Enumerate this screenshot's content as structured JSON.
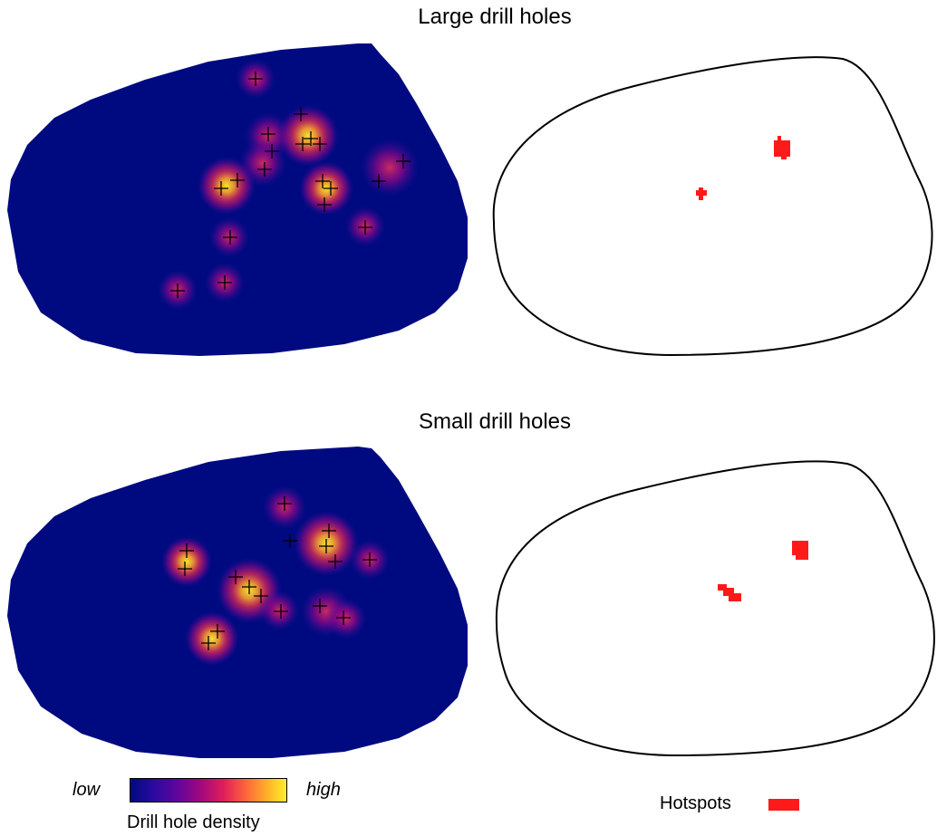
{
  "titles": {
    "large": "Large drill holes",
    "small": "Small drill holes"
  },
  "legend": {
    "low": "low",
    "high": "high",
    "density_title": "Drill hole density",
    "hotspots": "Hotspots"
  },
  "colors": {
    "background_density": "#000a80",
    "hotspot": "#ff1a1a",
    "colorbar_stops": [
      "#000a80",
      "#2a0aa0",
      "#60059c",
      "#a0087e",
      "#e01f5a",
      "#ff6a3a",
      "#ffb12a",
      "#ffef2a"
    ]
  }
}
